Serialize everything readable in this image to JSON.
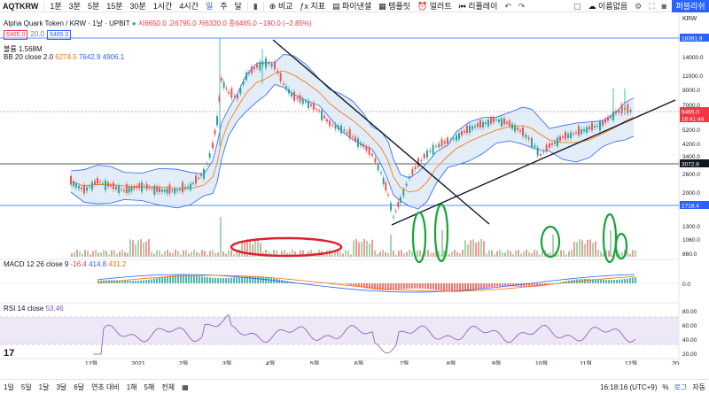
{
  "toolbar": {
    "symbol": "AQTKRW",
    "intervals": [
      "1분",
      "3분",
      "5분",
      "15분",
      "30분",
      "1시간",
      "4시간",
      "일",
      "주",
      "달"
    ],
    "active_interval": "일",
    "compare": "비교",
    "indicators": "지표",
    "financials": "파이낸셜",
    "templates": "템플릿",
    "alert": "얼러트",
    "replay": "리플레이",
    "layout_name": "이름없음",
    "publish": "퍼블리쉬"
  },
  "legend": {
    "title": "Alpha Quark Token / KRW · 1날 · UPBIT",
    "ohlc": "시6650.0 고6795.0 저6320.0 종6465.0 −190.0 (−2.85%)",
    "price_badge_1": "6465.0",
    "price_badge_2": "20.0",
    "price_badge_3": "6485.0",
    "volume": "볼륨 1.568M",
    "bb": "BB 20 close 2.0",
    "bb_values": [
      "6274.5",
      "7642.9",
      "4906.1"
    ],
    "macd": "MACD 12 26 close 9",
    "macd_values": [
      "-16.4",
      "414.8",
      "431.2"
    ],
    "rsi": "RSI 14 close",
    "rsi_value": "53.46"
  },
  "price_axis": {
    "currency": "KRW",
    "ticks": [
      "14000.0",
      "11000.0",
      "9000.0",
      "7000.0",
      "5200.0",
      "4200.0",
      "3400.0",
      "2600.0",
      "2000.0",
      "1300.0",
      "1060.0",
      "860.0"
    ],
    "labels": [
      {
        "text": "18391.9",
        "bg": "#2962ff"
      },
      {
        "text": "6465.0",
        "bg": "#f23645"
      },
      {
        "text": "16:41:44",
        "bg": "#f23645"
      },
      {
        "text": "3072.8",
        "bg": "#131722"
      },
      {
        "text": "1718.4",
        "bg": "#2962ff"
      }
    ],
    "macd_ticks": [
      "0.0"
    ],
    "rsi_ticks": [
      "80.00",
      "60.00",
      "40.00",
      "20.00"
    ]
  },
  "time_axis": [
    "12월",
    "2021",
    "2월",
    "3월",
    "4월",
    "5월",
    "6월",
    "7월",
    "8월",
    "9월",
    "10월",
    "11월",
    "12월",
    "20"
  ],
  "bottom": {
    "ranges": [
      "1일",
      "5일",
      "1달",
      "3달",
      "6달",
      "연초 대비",
      "1해",
      "5해",
      "전체"
    ],
    "calendar_icon": "calendar-icon",
    "time": "16:18:16 (UTC+9)",
    "percent": "%",
    "log": "로그",
    "auto": "자동"
  },
  "colors": {
    "up": "#26a69a",
    "down": "#ef5350",
    "bb_fill": "#d5e5f5",
    "bb_line": "#2962ff",
    "ma": "#ff6d00",
    "rsi_fill": "#ede7f6",
    "rsi_line": "#7e57c2",
    "circle_red": "#e0202a",
    "circle_green": "#17a33a",
    "accent": "#2962ff"
  }
}
